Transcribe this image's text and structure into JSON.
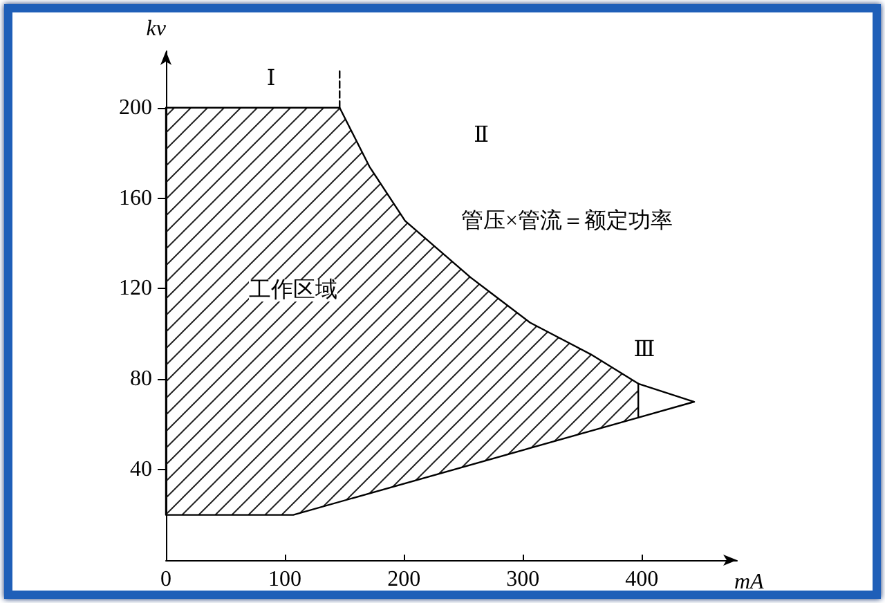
{
  "chart_data": {
    "type": "area",
    "xlabel": "mA",
    "ylabel": "kv",
    "xlim": [
      0,
      480
    ],
    "xticks": [
      0,
      100,
      200,
      300,
      400
    ],
    "ylim": [
      0,
      225
    ],
    "yticks": [
      40,
      80,
      120,
      160,
      200
    ],
    "marker": "none",
    "series": [
      {
        "color": "#000000",
        "x": [
          0,
          146,
          171,
          201,
          256,
          271,
          306,
          357,
          397,
          397,
          107,
          0,
          0
        ],
        "values": [
          200,
          200,
          174,
          150,
          125,
          119,
          105,
          91,
          78,
          63,
          20,
          20,
          200
        ]
      },
      {
        "type": "line",
        "color": "#000000",
        "x": [
          397,
          444,
          397
        ],
        "values": [
          78,
          70,
          63
        ],
        "line_style": "solid"
      },
      {
        "type": "line",
        "color": "#000000",
        "x": [
          146,
          146
        ],
        "values": [
          200,
          217
        ],
        "line_style": "dashed"
      }
    ],
    "annotations": [
      "Ⅰ",
      "Ⅱ",
      "管压×管流＝额定功率",
      "工作区域",
      "Ⅲ"
    ]
  }
}
